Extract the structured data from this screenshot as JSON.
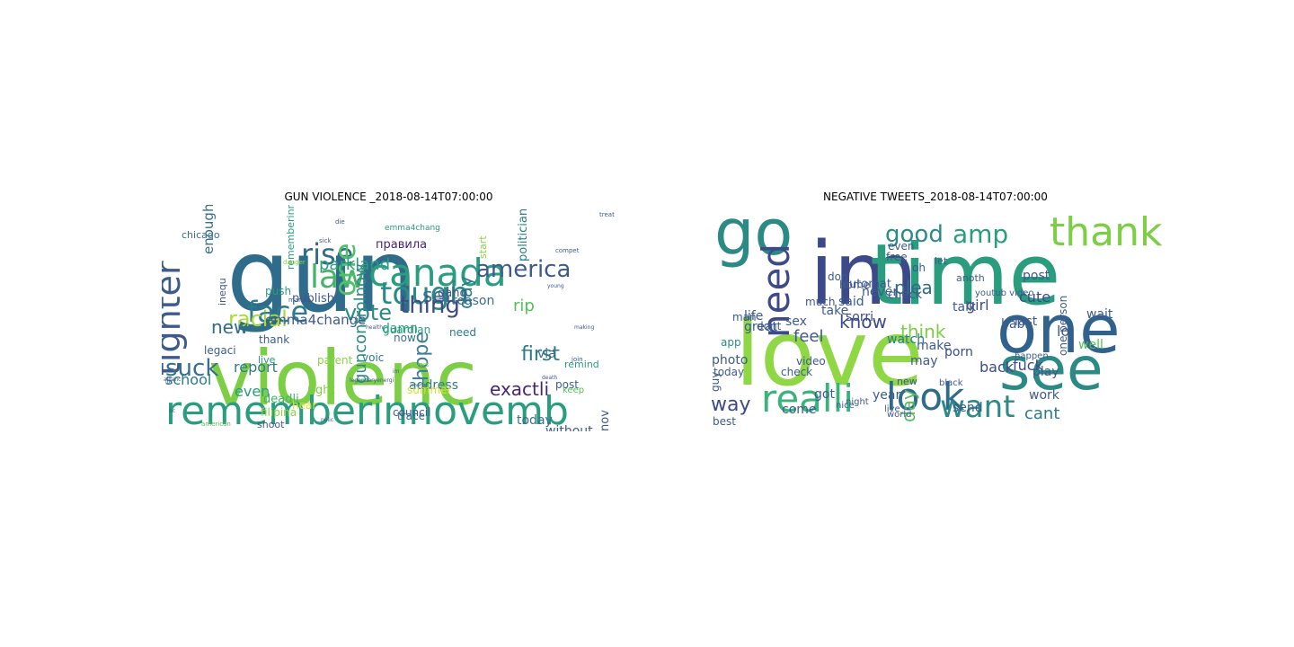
{
  "panels": [
    {
      "title": "GUN VIOLENCE _2018-08-14T07:00:00",
      "words": [
        {
          "text": "gun",
          "color": "#2f6b8a"
        },
        {
          "text": "violenc",
          "color": "#7ccf45"
        },
        {
          "text": "rememberinnovemb",
          "color": "#2a9d7f"
        },
        {
          "text": "tighter",
          "color": "#3d5a8c"
        },
        {
          "text": "face",
          "color": "#2c7a8c"
        },
        {
          "text": "law",
          "color": "#45b36a"
        },
        {
          "text": "rise",
          "color": "#2f6b8a"
        },
        {
          "text": "one",
          "color": "#4fc16b"
        },
        {
          "text": "canada",
          "color": "#2a9d7f"
        },
        {
          "text": "tough",
          "color": "#2c8a86"
        },
        {
          "text": "america",
          "color": "#3d5a8c"
        },
        {
          "text": "hope",
          "color": "#3f7f96"
        },
        {
          "text": "vote",
          "color": "#2c8a86"
        },
        {
          "text": "sell",
          "color": "#3a6e8e"
        },
        {
          "text": "thing",
          "color": "#3f4b86"
        },
        {
          "text": "day",
          "color": "#2c7a8c"
        },
        {
          "text": "racial",
          "color": "#a8db34"
        },
        {
          "text": "new",
          "color": "#2f6b8a"
        },
        {
          "text": "suck",
          "color": "#3a6e8e"
        },
        {
          "text": "damn",
          "color": "#2a9d7f"
        },
        {
          "text": "rip",
          "color": "#56bf5c"
        },
        {
          "text": "first",
          "color": "#2c7a8c"
        },
        {
          "text": "school",
          "color": "#2c7a8c"
        },
        {
          "text": "even",
          "color": "#2a9d7f"
        },
        {
          "text": "exactli",
          "color": "#482475"
        },
        {
          "text": "without",
          "color": "#3d5a8c"
        },
        {
          "text": "enoughisenough",
          "color": "#3a6e8e"
        },
        {
          "text": "inequ",
          "color": "#3d5a8c"
        },
        {
          "text": "chicago",
          "color": "#3a6e8e"
        },
        {
          "text": "parkland",
          "color": "#2a9d7f"
        },
        {
          "text": "правила",
          "color": "#482475"
        },
        {
          "text": "emma4chang",
          "color": "#2a9d7f"
        },
        {
          "text": "emma4change",
          "color": "#3d5a8c"
        },
        {
          "text": "guardian",
          "color": "#2a9d7f"
        },
        {
          "text": "guncontrolnow",
          "color": "#2c8a86"
        },
        {
          "text": "address",
          "color": "#2c7a8c"
        },
        {
          "text": "legaci",
          "color": "#3d5a8c"
        },
        {
          "text": "report",
          "color": "#2c7a8c"
        },
        {
          "text": "right",
          "color": "#7ccf45"
        },
        {
          "text": "deadli",
          "color": "#45b36a"
        },
        {
          "text": "trace",
          "color": "#3a6e8e"
        },
        {
          "text": "today",
          "color": "#3a6e8e"
        },
        {
          "text": "post",
          "color": "#3d5a8c"
        },
        {
          "text": "nov",
          "color": "#3d5a8c"
        },
        {
          "text": "keep",
          "color": "#56bf5c"
        },
        {
          "text": "need",
          "color": "#2c7a8c"
        },
        {
          "text": "reason",
          "color": "#3a6e8e"
        },
        {
          "text": "gang",
          "color": "#3d5a8c"
        },
        {
          "text": "start",
          "color": "#8ad547"
        },
        {
          "text": "politician",
          "color": "#2c7a8c"
        },
        {
          "text": "publish",
          "color": "#3d5a8c"
        },
        {
          "text": "push",
          "color": "#2a9d7f"
        },
        {
          "text": "thank",
          "color": "#3d5a8c"
        },
        {
          "text": "live",
          "color": "#2a9d7f"
        },
        {
          "text": "voic",
          "color": "#2c7a8c"
        },
        {
          "text": "now",
          "color": "#3a6e8e"
        },
        {
          "text": "parent",
          "color": "#8ad547"
        },
        {
          "text": "remind",
          "color": "#2a9d7f"
        },
        {
          "text": "via",
          "color": "#3a6e8e"
        },
        {
          "text": "hear",
          "color": "#d6e22b"
        },
        {
          "text": "filipina",
          "color": "#8ad547"
        },
        {
          "text": "summer",
          "color": "#d6e22b"
        },
        {
          "text": "rememberinnovember",
          "color": "#2a9d7f"
        },
        {
          "text": "council",
          "color": "#3d5a8c"
        },
        {
          "text": "shoot",
          "color": "#3d5a8c"
        },
        {
          "text": "prevent",
          "color": "#3a6e8e"
        },
        {
          "text": "american",
          "color": "#56bf5c"
        },
        {
          "text": "join",
          "color": "#3d5a8c"
        },
        {
          "text": "danger",
          "color": "#8ad547"
        },
        {
          "text": "sick",
          "color": "#3d5a8c"
        },
        {
          "text": "die",
          "color": "#3d5a8c"
        },
        {
          "text": "bc",
          "color": "#3d5a8c"
        },
        {
          "text": "compet",
          "color": "#3d5a8c"
        },
        {
          "text": "treat",
          "color": "#3d5a8c"
        },
        {
          "text": "young",
          "color": "#3d5a8c"
        },
        {
          "text": "making",
          "color": "#3d5a8c"
        },
        {
          "text": "death",
          "color": "#3d5a8c"
        },
        {
          "text": "polic",
          "color": "#3d5a8c"
        },
        {
          "text": "allianc",
          "color": "#3d5a8c"
        },
        {
          "text": "legendaryenergi",
          "color": "#3d5a8c"
        },
        {
          "text": "lot",
          "color": "#3d5a8c"
        },
        {
          "text": "health",
          "color": "#3d5a8c"
        },
        {
          "text": "marina",
          "color": "#3d5a8c"
        },
        {
          "text": "divers",
          "color": "#8ad547"
        },
        {
          "text": "killed",
          "color": "#3d5a8c"
        },
        {
          "text": "change",
          "color": "#3d5a8c"
        },
        {
          "text": "im",
          "color": "#3d5a8c"
        }
      ]
    },
    {
      "title": "NEGATIVE TWEETS_2018-08-14T07:00:00",
      "words": [
        {
          "text": "love",
          "color": "#8fd744"
        },
        {
          "text": "im",
          "color": "#3d4a8a"
        },
        {
          "text": "time",
          "color": "#2a9d7f"
        },
        {
          "text": "go",
          "color": "#2c8a86"
        },
        {
          "text": "one",
          "color": "#31628e"
        },
        {
          "text": "see",
          "color": "#2c8a86"
        },
        {
          "text": "thank",
          "color": "#7ccf45"
        },
        {
          "text": "need",
          "color": "#3d4a8a"
        },
        {
          "text": "realli",
          "color": "#3ab37a"
        },
        {
          "text": "look",
          "color": "#2f6b8a"
        },
        {
          "text": "want",
          "color": "#2c8a86"
        },
        {
          "text": "good",
          "color": "#2c8a86"
        },
        {
          "text": "amp",
          "color": "#2a9d7f"
        },
        {
          "text": "way",
          "color": "#3d4a8a"
        },
        {
          "text": "day",
          "color": "#56bf5c"
        },
        {
          "text": "know",
          "color": "#3d4a8a"
        },
        {
          "text": "think",
          "color": "#7ccf45"
        },
        {
          "text": "feel",
          "color": "#3d5a8c"
        },
        {
          "text": "plea",
          "color": "#2f6b8a"
        },
        {
          "text": "cant",
          "color": "#2c7a8c"
        },
        {
          "text": "girl",
          "color": "#3d4a8a"
        },
        {
          "text": "cute",
          "color": "#3d4a8a"
        },
        {
          "text": "post",
          "color": "#3d5a8c"
        },
        {
          "text": "last",
          "color": "#3d5a8c"
        },
        {
          "text": "talk",
          "color": "#3d5a8c"
        },
        {
          "text": "babi",
          "color": "#3d5a8c"
        },
        {
          "text": "lol",
          "color": "#3d5a8c"
        },
        {
          "text": "wait",
          "color": "#3d5a8c"
        },
        {
          "text": "fuck",
          "color": "#3d4a8a"
        },
        {
          "text": "well",
          "color": "#56bf5c"
        },
        {
          "text": "work",
          "color": "#3d5a8c"
        },
        {
          "text": "play",
          "color": "#3d5a8c"
        },
        {
          "text": "back",
          "color": "#3d4a8a"
        },
        {
          "text": "porn",
          "color": "#3d4a8a"
        },
        {
          "text": "year",
          "color": "#3d5a8c"
        },
        {
          "text": "send",
          "color": "#3d5a8c"
        },
        {
          "text": "watch",
          "color": "#2c7a8c"
        },
        {
          "text": "make",
          "color": "#3d5a8c"
        },
        {
          "text": "may",
          "color": "#3d5a8c"
        },
        {
          "text": "got",
          "color": "#3d5a8c"
        },
        {
          "text": "come",
          "color": "#3d5a8c"
        },
        {
          "text": "check",
          "color": "#3d5a8c"
        },
        {
          "text": "video",
          "color": "#3d5a8c"
        },
        {
          "text": "sorri",
          "color": "#3d4a8a"
        },
        {
          "text": "sex",
          "color": "#3d5a8c"
        },
        {
          "text": "take",
          "color": "#3d5a8c"
        },
        {
          "text": "said",
          "color": "#3d5a8c"
        },
        {
          "text": "never",
          "color": "#3d5a8c"
        },
        {
          "text": "much",
          "color": "#3d5a8c"
        },
        {
          "text": "don",
          "color": "#3d5a8c"
        },
        {
          "text": "home",
          "color": "#3d5a8c"
        },
        {
          "text": "great",
          "color": "#3d5a8c"
        },
        {
          "text": "life",
          "color": "#3d5a8c"
        },
        {
          "text": "man",
          "color": "#3d5a8c"
        },
        {
          "text": "dont",
          "color": "#3d5a8c"
        },
        {
          "text": "app",
          "color": "#2c8a86"
        },
        {
          "text": "photo",
          "color": "#3d5a8c"
        },
        {
          "text": "today",
          "color": "#3d5a8c"
        },
        {
          "text": "guy",
          "color": "#3d5a8c"
        },
        {
          "text": "best",
          "color": "#3d5a8c"
        },
        {
          "text": "automat",
          "color": "#3d5a8c"
        },
        {
          "text": "check",
          "color": "#3d5a8c"
        },
        {
          "text": "free",
          "color": "#3d5a8c"
        },
        {
          "text": "oh",
          "color": "#3d5a8c"
        },
        {
          "text": "even",
          "color": "#3d5a8c"
        },
        {
          "text": "let",
          "color": "#3d5a8c"
        },
        {
          "text": "anoth",
          "color": "#3d5a8c"
        },
        {
          "text": "youtub video",
          "color": "#3d5a8c"
        },
        {
          "text": "one person",
          "color": "#3d5a8c"
        },
        {
          "text": "new",
          "color": "#3d5a8c"
        },
        {
          "text": "happen",
          "color": "#3d5a8c"
        },
        {
          "text": "live",
          "color": "#3d5a8c"
        },
        {
          "text": "night",
          "color": "#3d5a8c"
        },
        {
          "text": "nice",
          "color": "#3d5a8c"
        },
        {
          "text": "world",
          "color": "#3d5a8c"
        },
        {
          "text": "black",
          "color": "#3d5a8c"
        }
      ]
    }
  ]
}
